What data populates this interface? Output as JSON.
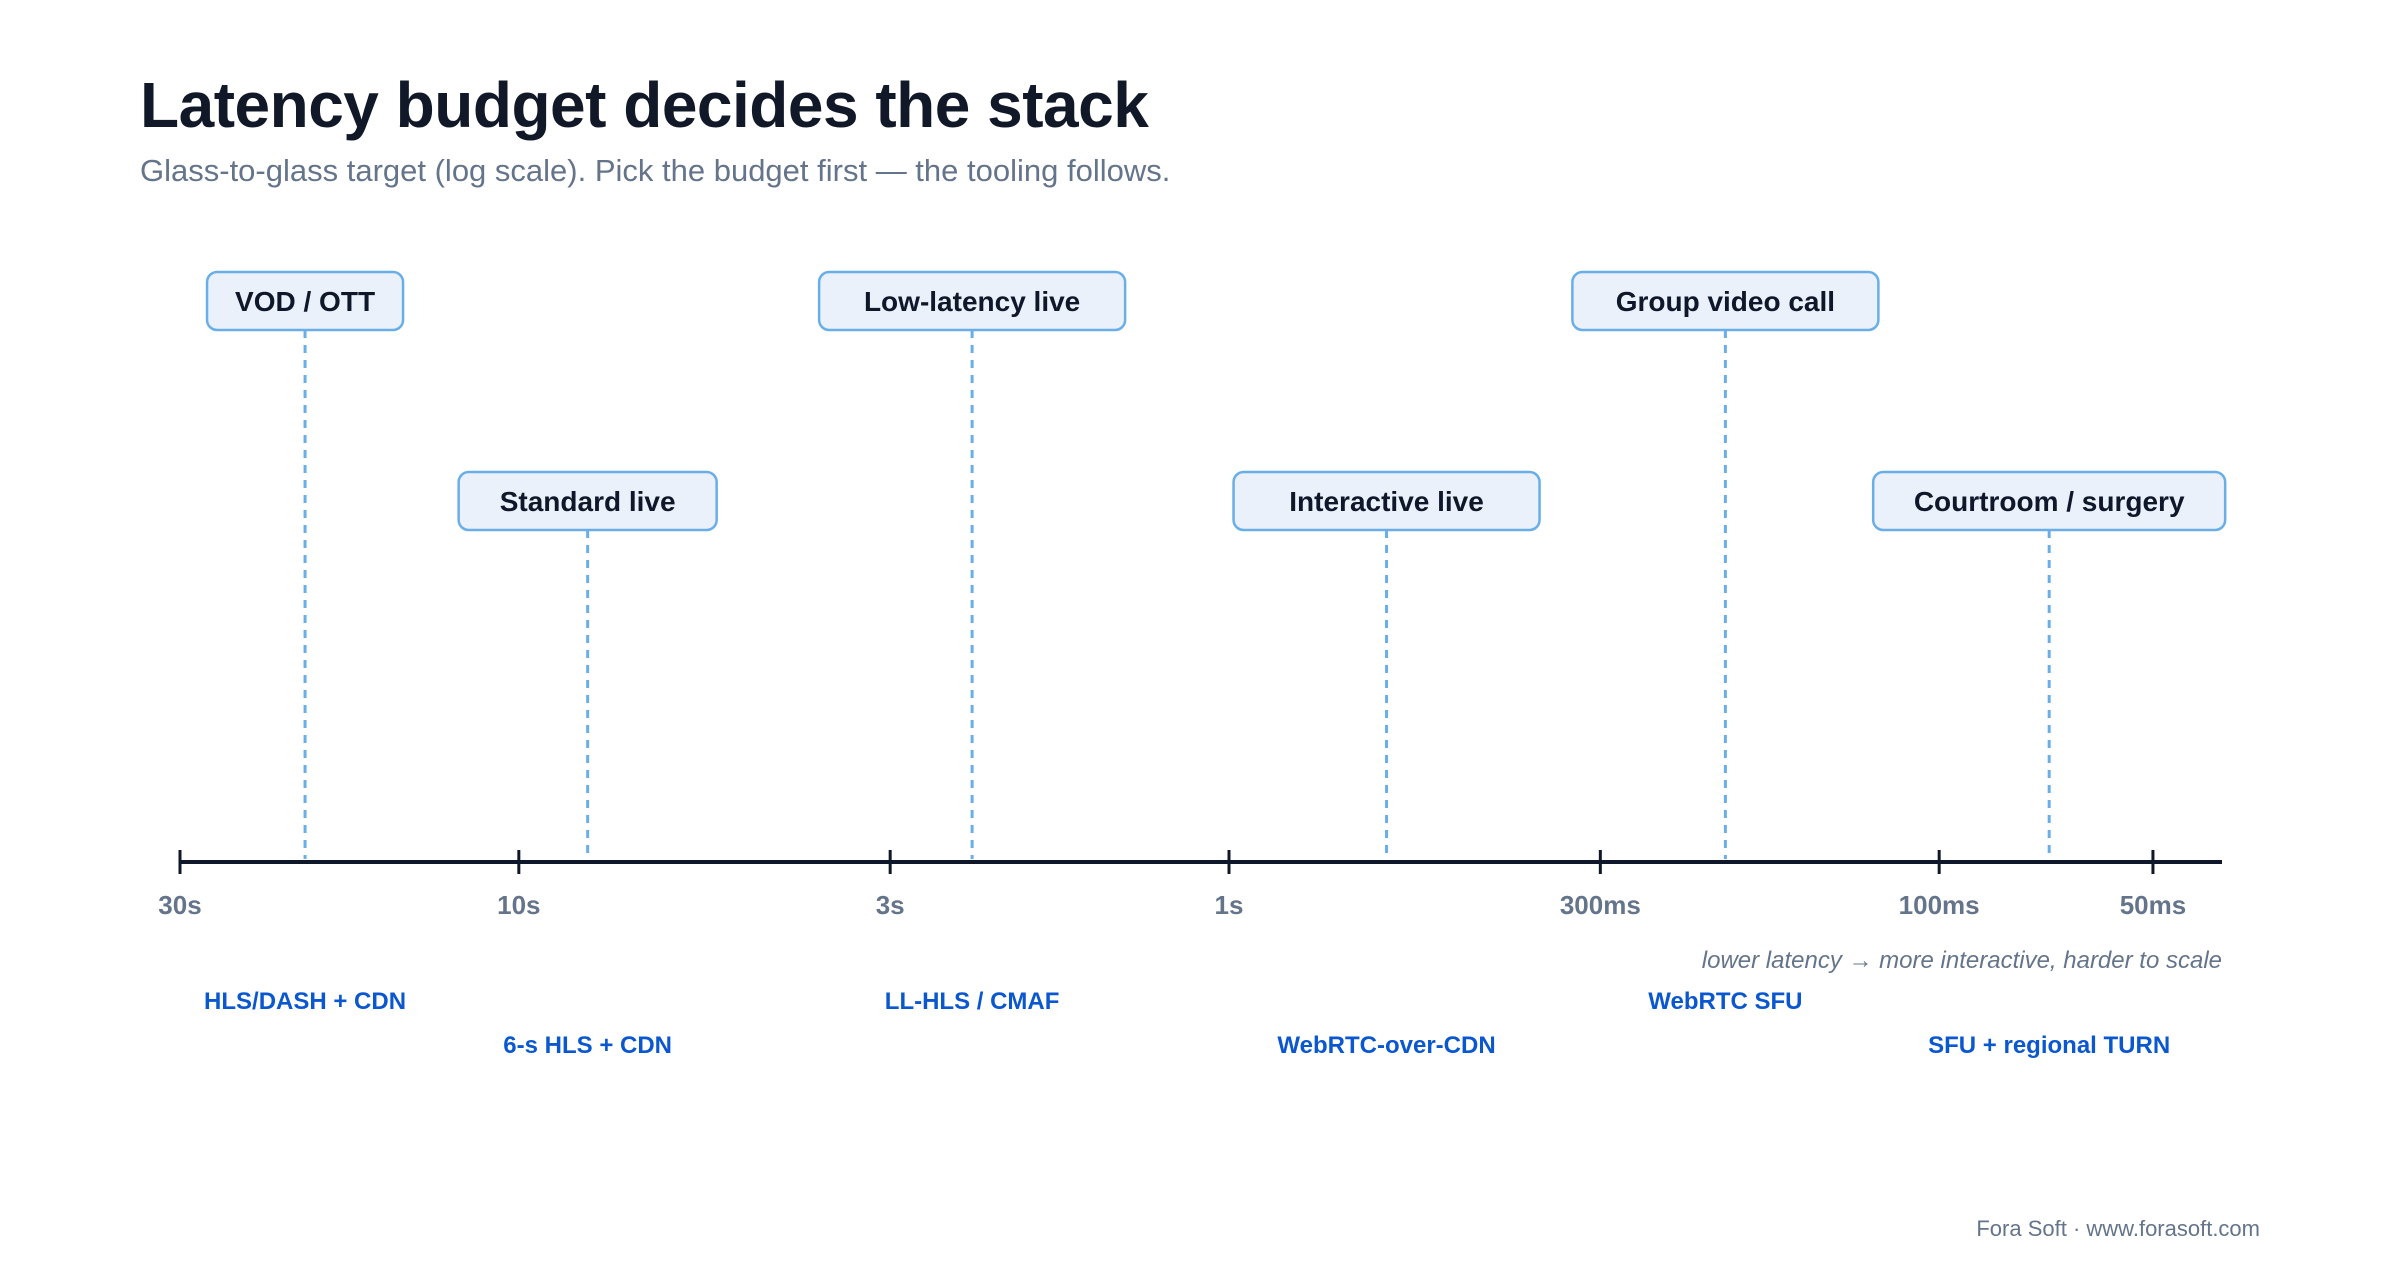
{
  "title": "Latency budget decides the stack",
  "subtitle": "Glass-to-glass target (log scale). Pick the budget first — the tooling follows.",
  "axis": {
    "scale": "log",
    "direction": "decreasing-left-to-right",
    "ticks": [
      {
        "label": "30s",
        "value_ms": 30000
      },
      {
        "label": "10s",
        "value_ms": 10000
      },
      {
        "label": "3s",
        "value_ms": 3000
      },
      {
        "label": "1s",
        "value_ms": 1000
      },
      {
        "label": "300ms",
        "value_ms": 300
      },
      {
        "label": "100ms",
        "value_ms": 100
      },
      {
        "label": "50ms",
        "value_ms": 50
      }
    ],
    "note": "lower latency → more interactive, harder to scale"
  },
  "use_cases": [
    {
      "label": "VOD / OTT",
      "latency_ms": 20000,
      "tech": "HLS/DASH + CDN",
      "tier": 1
    },
    {
      "label": "Standard live",
      "latency_ms": 8000,
      "tech": "6-s HLS + CDN",
      "tier": 2
    },
    {
      "label": "Low-latency live",
      "latency_ms": 2300,
      "tech": "LL-HLS / CMAF",
      "tier": 1
    },
    {
      "label": "Interactive live",
      "latency_ms": 600,
      "tech": "WebRTC-over-CDN",
      "tier": 2
    },
    {
      "label": "Group video call",
      "latency_ms": 200,
      "tech": "WebRTC SFU",
      "tier": 1
    },
    {
      "label": "Courtroom / surgery",
      "latency_ms": 70,
      "tech": "SFU + regional TURN",
      "tier": 2
    }
  ],
  "colors": {
    "axis": "#0f172a",
    "box_fill": "#eaf1fb",
    "box_stroke": "#6aaee8",
    "connector": "#6aaee8",
    "tech_text": "#0b57d0"
  },
  "credit": "Fora Soft · www.forasoft.com"
}
